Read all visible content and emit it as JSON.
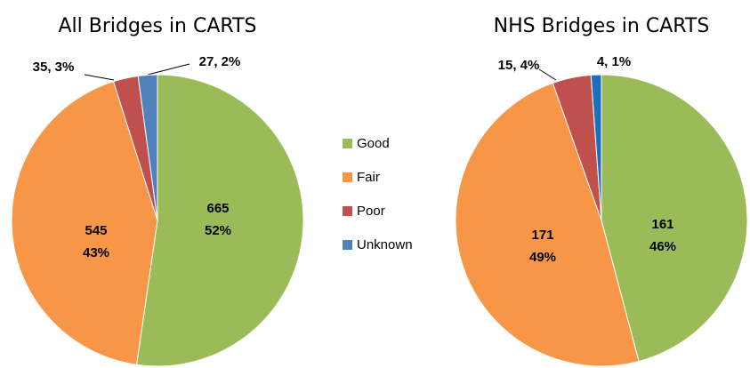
{
  "chart_data": [
    {
      "type": "pie",
      "title": "All Bridges in CARTS",
      "categories": [
        "Good",
        "Fair",
        "Poor",
        "Unknown"
      ],
      "values": [
        665,
        545,
        35,
        27
      ],
      "value_labels": [
        "665\n52%",
        "545\n43%",
        "35, 3%",
        "27, 2%"
      ],
      "colors": [
        "#9bbb59",
        "#f79646",
        "#c0504d",
        "#4f81bd"
      ]
    },
    {
      "type": "pie",
      "title": "NHS Bridges in CARTS",
      "categories": [
        "Good",
        "Fair",
        "Poor",
        "Unknown"
      ],
      "values": [
        161,
        171,
        15,
        4
      ],
      "value_labels": [
        "161\n46%",
        "171\n49%",
        "15, 4%",
        "4, 1%"
      ],
      "colors": [
        "#9bbb59",
        "#f79646",
        "#c0504d",
        "#1f6fbf"
      ]
    }
  ]
}
